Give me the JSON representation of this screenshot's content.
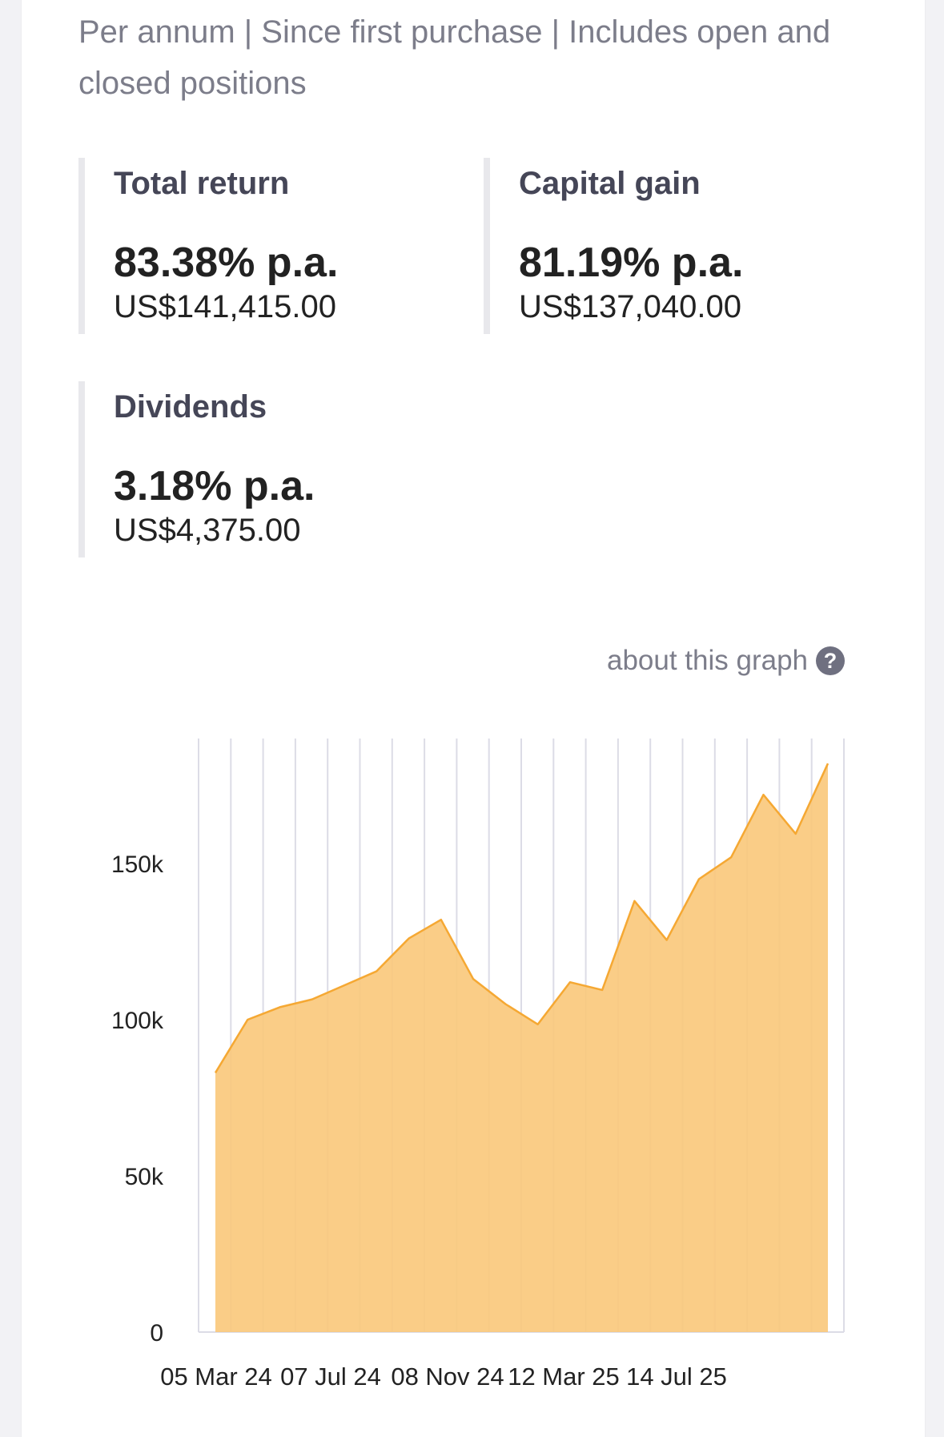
{
  "subtitle": "Per annum | Since first purchase | Includes open and closed positions",
  "metrics": {
    "total_return": {
      "label": "Total return",
      "pct": "83.38% p.a.",
      "amount": "US$141,415.00"
    },
    "capital_gain": {
      "label": "Capital gain",
      "pct": "81.19% p.a.",
      "amount": "US$137,040.00"
    },
    "dividends": {
      "label": "Dividends",
      "pct": "3.18% p.a.",
      "amount": "US$4,375.00"
    }
  },
  "about_link": "about this graph",
  "about_icon": "question-icon",
  "colors": {
    "fill": "#fac87a",
    "line": "#f5a833",
    "grid": "#dcdce6",
    "text": "#222222"
  },
  "chart_data": {
    "type": "area",
    "y_ticks": [
      "150k",
      "100k",
      "50k",
      "0"
    ],
    "y_tick_values": [
      150000,
      100000,
      50000,
      0
    ],
    "x_tick_labels": [
      "05 Mar 24",
      "07 Jul 24",
      "08 Nov 24",
      "12 Mar 25",
      "14 Jul 25"
    ],
    "ylim": [
      0,
      190000
    ],
    "series": [
      {
        "values": [
          83000,
          100000,
          104000,
          106500,
          111000,
          115500,
          126000,
          132000,
          113000,
          105000,
          98500,
          112000,
          109500,
          138000,
          125500,
          145000,
          152000,
          172000,
          159500,
          182000
        ]
      }
    ],
    "grid": true,
    "legend": "none"
  }
}
